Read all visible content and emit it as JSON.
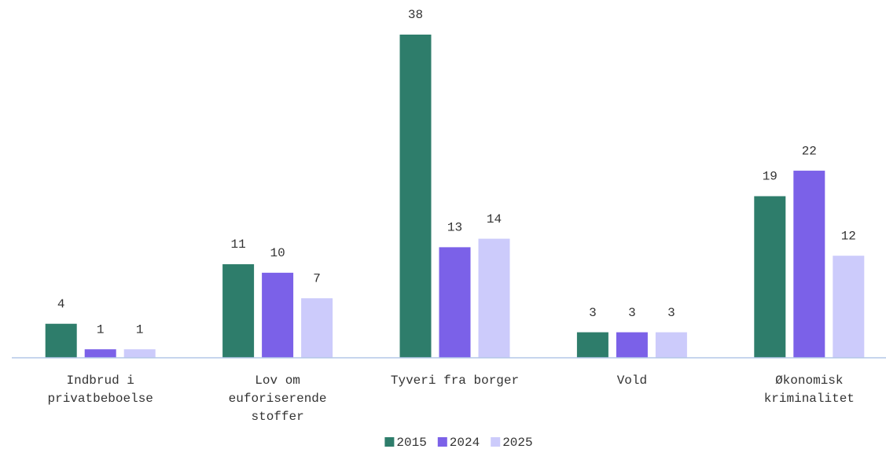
{
  "chart_data": {
    "type": "bar",
    "categories": [
      "Indbrud i privatbeboelse",
      "Lov om euforiserende stoffer",
      "Tyveri fra borger",
      "Vold",
      "Økonomisk kriminalitet"
    ],
    "series": [
      {
        "name": "2015",
        "color": "#2e7d6b",
        "values": [
          4,
          11,
          38,
          3,
          19
        ]
      },
      {
        "name": "2024",
        "color": "#7b61e8",
        "values": [
          1,
          10,
          13,
          3,
          22
        ]
      },
      {
        "name": "2025",
        "color": "#cccbfb",
        "values": [
          1,
          7,
          14,
          3,
          12
        ]
      }
    ],
    "ylim": [
      0,
      38
    ],
    "legend": "bottom"
  }
}
